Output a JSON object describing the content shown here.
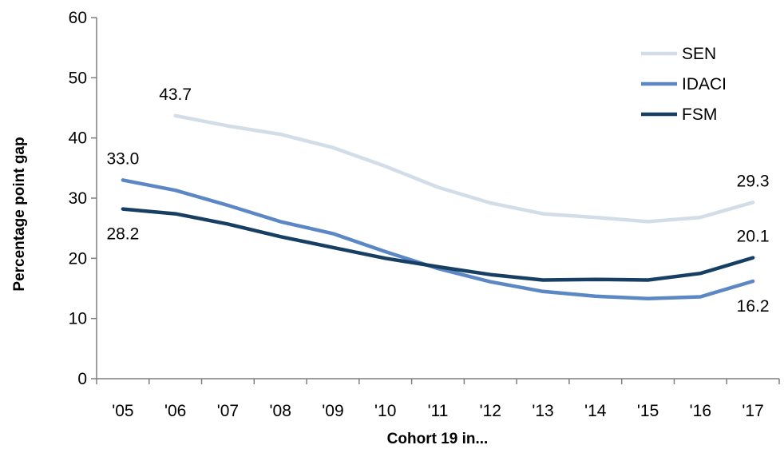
{
  "chart_data": {
    "type": "line",
    "title": "",
    "xlabel": "Cohort 19 in...",
    "ylabel": "Percentage point gap",
    "categories": [
      "'05",
      "'06",
      "'07",
      "'08",
      "'09",
      "'10",
      "'11",
      "'12",
      "'13",
      "'14",
      "'15",
      "'16",
      "'17"
    ],
    "ylim": [
      0,
      60
    ],
    "yticks": [
      "0",
      "10",
      "20",
      "30",
      "40",
      "50",
      "60"
    ],
    "grid": false,
    "legend_position": "top-right",
    "series": [
      {
        "name": "SEN",
        "color": "#d3dde8",
        "values": [
          null,
          43.7,
          42.0,
          40.6,
          38.4,
          35.3,
          31.8,
          29.2,
          27.4,
          26.8,
          26.1,
          26.8,
          29.3
        ]
      },
      {
        "name": "IDACI",
        "color": "#5b87c5",
        "values": [
          33.0,
          31.3,
          28.8,
          26.1,
          24.1,
          21.1,
          18.3,
          16.1,
          14.5,
          13.7,
          13.3,
          13.6,
          16.2
        ]
      },
      {
        "name": "FSM",
        "color": "#163f63",
        "values": [
          28.2,
          27.4,
          25.7,
          23.6,
          21.8,
          20.0,
          18.6,
          17.3,
          16.4,
          16.5,
          16.4,
          17.5,
          20.1
        ]
      }
    ],
    "data_labels": [
      {
        "series": "SEN",
        "index": 1,
        "text": "43.7",
        "anchor": "above"
      },
      {
        "series": "SEN",
        "index": 12,
        "text": "29.3",
        "anchor": "above"
      },
      {
        "series": "IDACI",
        "index": 0,
        "text": "33.0",
        "anchor": "above"
      },
      {
        "series": "IDACI",
        "index": 12,
        "text": "16.2",
        "anchor": "below"
      },
      {
        "series": "FSM",
        "index": 0,
        "text": "28.2",
        "anchor": "below"
      },
      {
        "series": "FSM",
        "index": 12,
        "text": "20.1",
        "anchor": "above"
      }
    ]
  }
}
